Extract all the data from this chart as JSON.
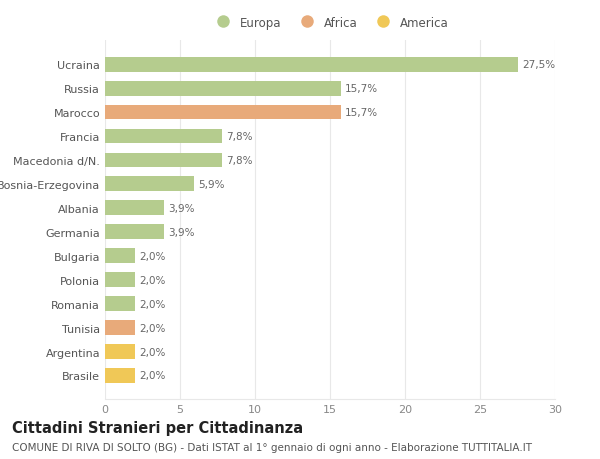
{
  "categories": [
    "Ucraina",
    "Russia",
    "Marocco",
    "Francia",
    "Macedonia d/N.",
    "Bosnia-Erzegovina",
    "Albania",
    "Germania",
    "Bulgaria",
    "Polonia",
    "Romania",
    "Tunisia",
    "Argentina",
    "Brasile"
  ],
  "values": [
    27.5,
    15.7,
    15.7,
    7.8,
    7.8,
    5.9,
    3.9,
    3.9,
    2.0,
    2.0,
    2.0,
    2.0,
    2.0,
    2.0
  ],
  "labels": [
    "27,5%",
    "15,7%",
    "15,7%",
    "7,8%",
    "7,8%",
    "5,9%",
    "3,9%",
    "3,9%",
    "2,0%",
    "2,0%",
    "2,0%",
    "2,0%",
    "2,0%",
    "2,0%"
  ],
  "colors": [
    "#b5cc8e",
    "#b5cc8e",
    "#e8aa7a",
    "#b5cc8e",
    "#b5cc8e",
    "#b5cc8e",
    "#b5cc8e",
    "#b5cc8e",
    "#b5cc8e",
    "#b5cc8e",
    "#b5cc8e",
    "#e8aa7a",
    "#f0c857",
    "#f0c857"
  ],
  "legend_labels": [
    "Europa",
    "Africa",
    "America"
  ],
  "legend_colors": [
    "#b5cc8e",
    "#e8aa7a",
    "#f0c857"
  ],
  "title": "Cittadini Stranieri per Cittadinanza",
  "subtitle": "COMUNE DI RIVA DI SOLTO (BG) - Dati ISTAT al 1° gennaio di ogni anno - Elaborazione TUTTITALIA.IT",
  "xlim": [
    0,
    30
  ],
  "xticks": [
    0,
    5,
    10,
    15,
    20,
    25,
    30
  ],
  "bg_color": "#ffffff",
  "grid_color": "#e8e8e8",
  "bar_height": 0.62,
  "title_fontsize": 10.5,
  "subtitle_fontsize": 7.5,
  "label_fontsize": 7.5,
  "tick_fontsize": 8,
  "legend_fontsize": 8.5
}
